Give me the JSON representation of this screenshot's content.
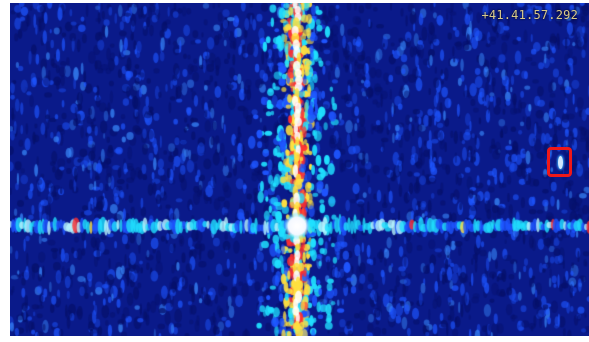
{
  "spectrogram": {
    "timestamp": "+41.41.57.292",
    "colors": {
      "background": "#0a1a8a",
      "timestamp_text": "#d9c98a",
      "marker_border": "#f01818",
      "signal_low": "#1e55ff",
      "signal_mid": "#20e0ff",
      "signal_high": "#ffe040",
      "signal_peak": "#ff3030",
      "signal_core": "#ffffff"
    }
  }
}
